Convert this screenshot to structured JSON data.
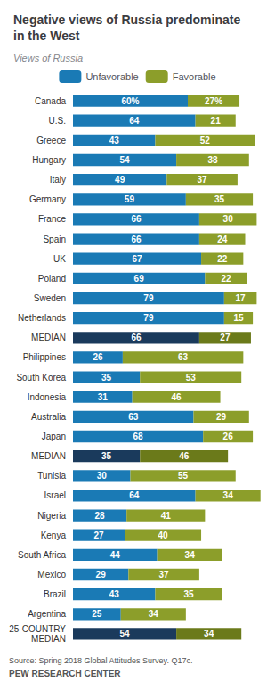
{
  "chart_data": {
    "type": "bar",
    "orientation": "horizontal",
    "stacked": true,
    "data_labels": true,
    "tick_labels": "y",
    "grid": false,
    "legend": "top",
    "title": "Negative views of Russia predominate\nin the West",
    "subtitle": "Views of Russia",
    "annotations": [
      "Source: Spring 2018 Global Attitudes Survey. Q17c.",
      "PEW RESEARCH CENTER"
    ],
    "categories": [
      "Canada",
      "U.S.",
      "Greece",
      "Hungary",
      "Italy",
      "Germany",
      "France",
      "Spain",
      "UK",
      "Poland",
      "Sweden",
      "Netherlands",
      "MEDIAN",
      "Philippines",
      "South Korea",
      "Indonesia",
      "Australia",
      "Japan",
      "MEDIAN",
      "Tunisia",
      "Israel",
      "Nigeria",
      "Kenya",
      "South Africa",
      "Mexico",
      "Brazil",
      "Argentina",
      "25-COUNTRY\nMEDIAN"
    ],
    "xlim": [
      0,
      100
    ],
    "xticks": [
      0,
      25,
      50,
      75,
      100
    ],
    "series": [
      {
        "name": "Unfavorable",
        "color": "#1a7ab5",
        "colors": [
          "#1a7ab5",
          "#1a7ab5",
          "#1a7ab5",
          "#1a7ab5",
          "#1a7ab5",
          "#1a7ab5",
          "#1a7ab5",
          "#1a7ab5",
          "#1a7ab5",
          "#1a7ab5",
          "#1a7ab5",
          "#1a7ab5",
          "#1a3a5c",
          "#1a7ab5",
          "#1a7ab5",
          "#1a7ab5",
          "#1a7ab5",
          "#1a7ab5",
          "#1a3a5c",
          "#1a7ab5",
          "#1a7ab5",
          "#1a7ab5",
          "#1a7ab5",
          "#1a7ab5",
          "#1a7ab5",
          "#1a7ab5",
          "#1a7ab5",
          "#1a3a5c"
        ],
        "values": [
          60,
          64,
          43,
          54,
          49,
          59,
          66,
          66,
          67,
          69,
          79,
          79,
          66,
          26,
          35,
          31,
          63,
          68,
          35,
          30,
          64,
          28,
          27,
          44,
          29,
          43,
          25,
          54
        ],
        "value_labels": [
          "60%",
          "64",
          "43",
          "54",
          "49",
          "59",
          "66",
          "66",
          "67",
          "69",
          "79",
          "79",
          "66",
          "26",
          "35",
          "31",
          "63",
          "68",
          "35",
          "30",
          "64",
          "28",
          "27",
          "44",
          "29",
          "43",
          "25",
          "54"
        ]
      },
      {
        "name": "Favorable",
        "color": "#8c9e2a",
        "colors": [
          "#8c9e2a",
          "#8c9e2a",
          "#8c9e2a",
          "#8c9e2a",
          "#8c9e2a",
          "#8c9e2a",
          "#8c9e2a",
          "#8c9e2a",
          "#8c9e2a",
          "#8c9e2a",
          "#8c9e2a",
          "#8c9e2a",
          "#6b7a1a",
          "#8c9e2a",
          "#8c9e2a",
          "#8c9e2a",
          "#8c9e2a",
          "#8c9e2a",
          "#6b7a1a",
          "#8c9e2a",
          "#8c9e2a",
          "#8c9e2a",
          "#8c9e2a",
          "#8c9e2a",
          "#8c9e2a",
          "#8c9e2a",
          "#8c9e2a",
          "#6b7a1a"
        ],
        "values": [
          27,
          21,
          52,
          38,
          37,
          35,
          30,
          24,
          22,
          22,
          17,
          15,
          27,
          63,
          53,
          46,
          29,
          26,
          46,
          55,
          34,
          41,
          40,
          34,
          37,
          35,
          34,
          34
        ],
        "value_labels": [
          "27%",
          "21",
          "52",
          "38",
          "37",
          "35",
          "30",
          "24",
          "22",
          "22",
          "17",
          "15",
          "27",
          "63",
          "53",
          "46",
          "29",
          "26",
          "46",
          "55",
          "34",
          "41",
          "40",
          "34",
          "37",
          "35",
          "34",
          "34"
        ]
      }
    ]
  }
}
